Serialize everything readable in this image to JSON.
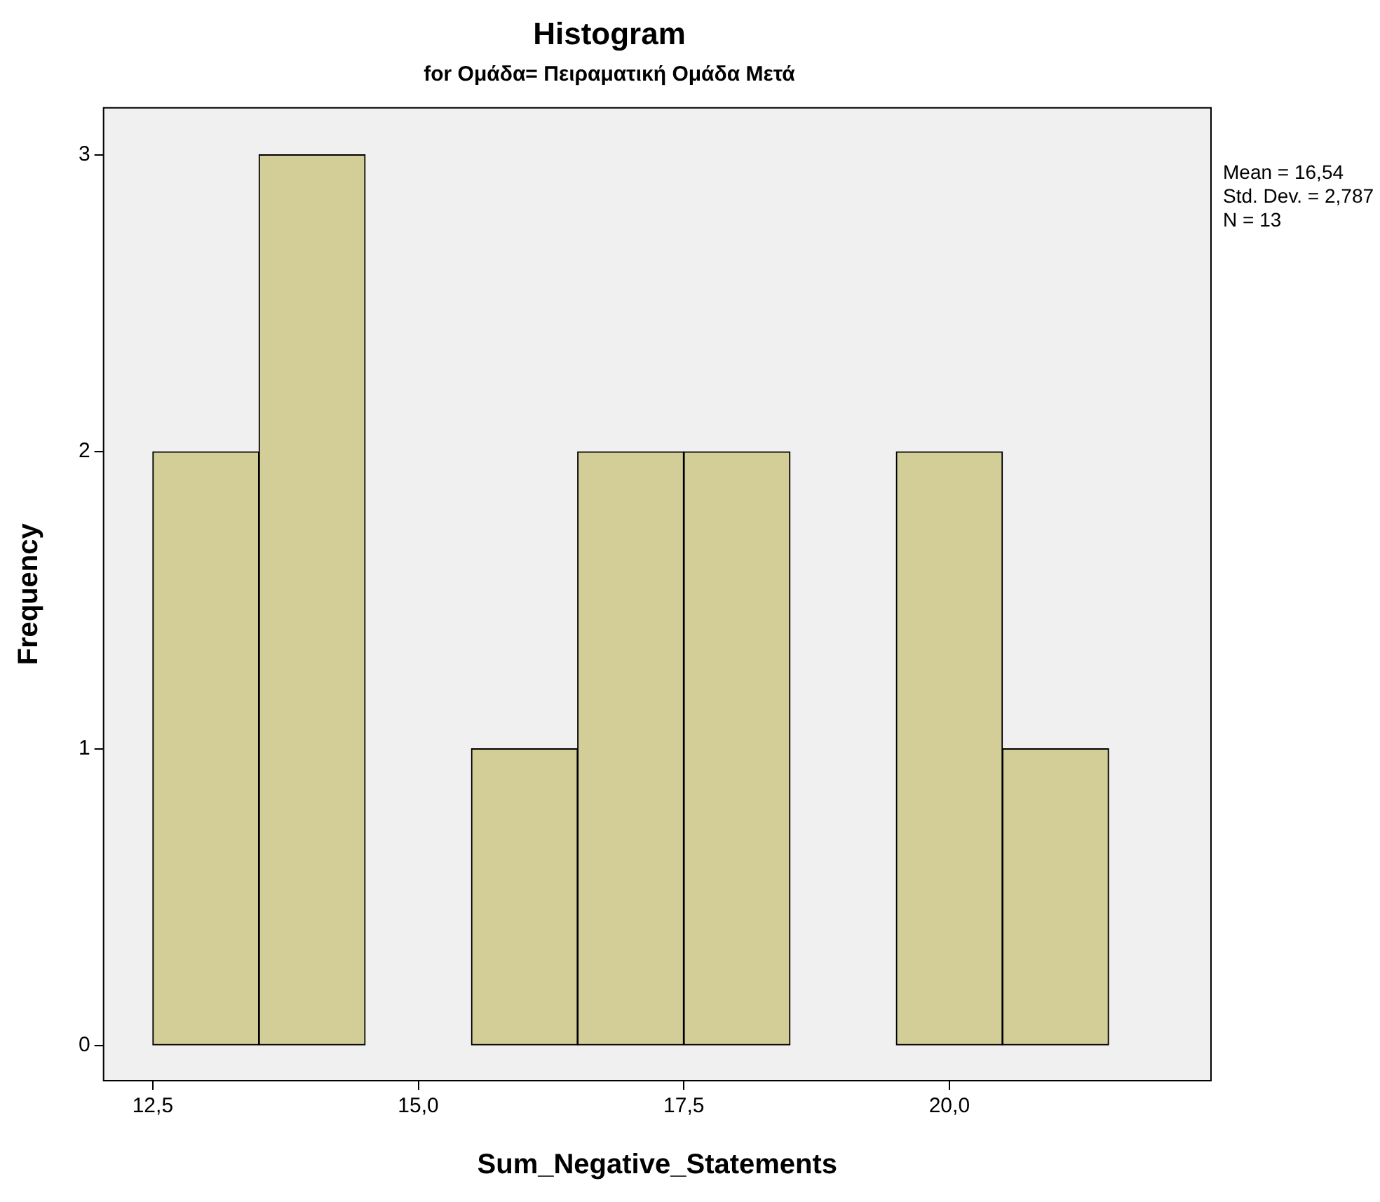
{
  "chart_data": {
    "type": "histogram",
    "title": "Histogram",
    "subtitle": "for Ομάδα= Πειραματική Ομάδα Μετά",
    "xlabel": "Sum_Negative_Statements",
    "ylabel": "Frequency",
    "bins": [
      12.5,
      13.5,
      14.5,
      15.5,
      16.5,
      17.5,
      18.5,
      19.5,
      20.5,
      21.5
    ],
    "values": [
      2,
      3,
      0,
      1,
      2,
      2,
      0,
      2,
      1
    ],
    "color": "#d3ce97",
    "xlim": [
      12.03,
      22.47
    ],
    "xticks": [
      {
        "value": 12.5,
        "label": "12,5"
      },
      {
        "value": 15,
        "label": "15,0"
      },
      {
        "value": 17.5,
        "label": "17,5"
      },
      {
        "value": 20,
        "label": "20,0"
      }
    ],
    "ylim": [
      -0.12,
      3.16
    ],
    "yticks": [
      0,
      1,
      2,
      3
    ],
    "grid": false,
    "legend": false,
    "annotations": [
      "Mean = 16,54",
      "Std. Dev. = 2,787",
      "N = 13"
    ]
  }
}
